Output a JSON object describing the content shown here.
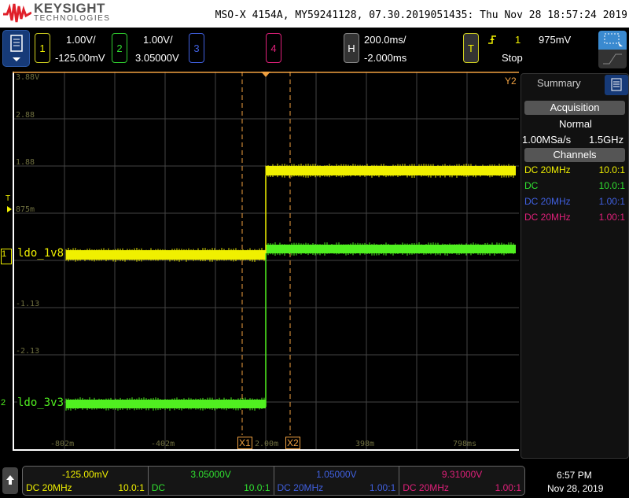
{
  "header": {
    "brand": "KEYSIGHT",
    "brand_sub": "TECHNOLOGIES",
    "title": "MSO-X 4154A, MY59241128, 07.30.2019051435: Thu Nov 28 18:57:24 2019"
  },
  "channels": [
    {
      "num": "1",
      "scale": "1.00V/",
      "offset": "-125.00mV",
      "color": "#f0f000"
    },
    {
      "num": "2",
      "scale": "1.00V/",
      "offset": "3.05000V",
      "color": "#30e030"
    },
    {
      "num": "3",
      "color": "#4060e0"
    },
    {
      "num": "4",
      "color": "#e0207a"
    }
  ],
  "horizontal": {
    "label": "H",
    "scale": "200.0ms/",
    "delay": "-2.000ms"
  },
  "trigger": {
    "label": "T",
    "source": "1",
    "level": "975mV",
    "status": "Stop"
  },
  "grid": {
    "y_labels": [
      "3.88V",
      "2.88",
      "1.88",
      "875m",
      "-1.13",
      "-2.13"
    ],
    "x_labels": [
      "-802m",
      "-402m",
      "2.00m",
      "398m",
      "798ms"
    ],
    "trigger_marker": "T",
    "cursors": [
      "X1",
      "X2"
    ],
    "y_cursor": "Y2"
  },
  "traces": [
    {
      "label": "ldo_1v8",
      "channel": "1",
      "color": "#f0f000"
    },
    {
      "label": "ldo_3v3",
      "channel": "2",
      "color": "#50f020"
    }
  ],
  "summary": {
    "tab": "Summary",
    "acquisition_label": "Acquisition",
    "mode": "Normal",
    "sample_rate": "1.00MSa/s",
    "bandwidth": "1.5GHz",
    "channels_label": "Channels",
    "channels": [
      {
        "coupling": "DC  20MHz",
        "probe": "10.0:1",
        "color": "#f0f000"
      },
      {
        "coupling": "DC",
        "probe": "10.0:1",
        "color": "#30e030"
      },
      {
        "coupling": "DC  20MHz",
        "probe": "1.00:1",
        "color": "#4060e0"
      },
      {
        "coupling": "DC  20MHz",
        "probe": "1.00:1",
        "color": "#e0207a"
      }
    ]
  },
  "bottom": {
    "channels": [
      {
        "value": "-125.00mV",
        "coupling": "DC 20MHz",
        "probe": "10.0:1",
        "color": "#f0f000"
      },
      {
        "value": "3.05000V",
        "coupling": "DC",
        "probe": "10.0:1",
        "color": "#30e030"
      },
      {
        "value": "1.05000V",
        "coupling": "DC 20MHz",
        "probe": "1.00:1",
        "color": "#4060e0"
      },
      {
        "value": "9.31000V",
        "coupling": "DC 20MHz",
        "probe": "1.00:1",
        "color": "#e0207a"
      }
    ],
    "time": "6:57 PM",
    "date": "Nov 28, 2019"
  }
}
